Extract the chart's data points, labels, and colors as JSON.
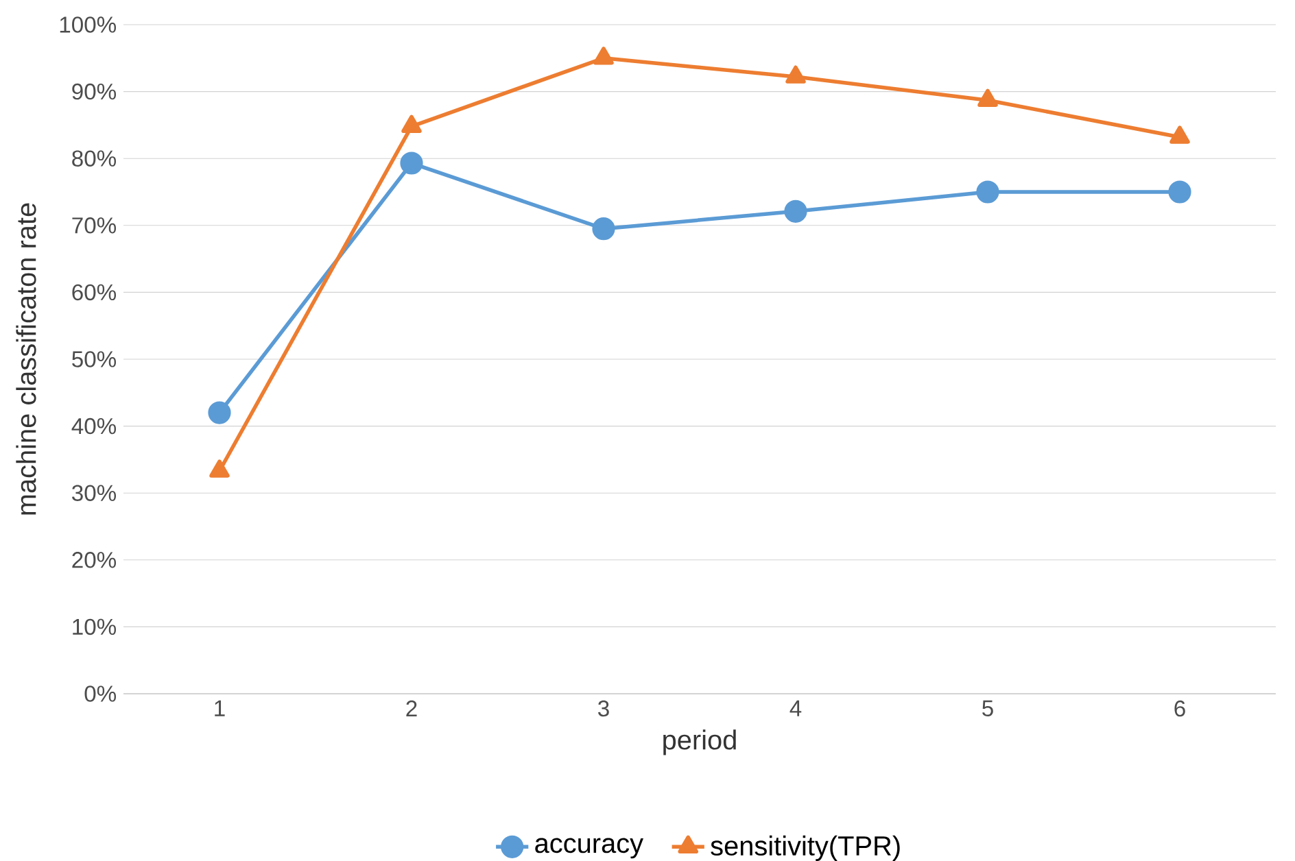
{
  "chart_data": {
    "type": "line",
    "xlabel": "period",
    "ylabel": "machine classificaton rate",
    "categories": [
      "1",
      "2",
      "3",
      "4",
      "5",
      "6"
    ],
    "series": [
      {
        "name": "accuracy",
        "color": "#5b9bd5",
        "marker": "circle",
        "values": [
          42,
          79.3,
          69.5,
          72.1,
          75,
          75
        ]
      },
      {
        "name": "sensitivity(TPR)",
        "color": "#ed7d31",
        "marker": "triangle",
        "values": [
          33.3,
          84.8,
          95,
          92.2,
          88.7,
          83.2
        ]
      }
    ],
    "ylim": [
      0,
      100
    ],
    "yticks": [
      {
        "value": 0,
        "label": "0%"
      },
      {
        "value": 10,
        "label": "10%"
      },
      {
        "value": 20,
        "label": "20%"
      },
      {
        "value": 30,
        "label": "30%"
      },
      {
        "value": 40,
        "label": "40%"
      },
      {
        "value": 50,
        "label": "50%"
      },
      {
        "value": 60,
        "label": "60%"
      },
      {
        "value": 70,
        "label": "70%"
      },
      {
        "value": 80,
        "label": "80%"
      },
      {
        "value": 90,
        "label": "90%"
      },
      {
        "value": 100,
        "label": "100%"
      }
    ],
    "grid": "y",
    "legend": "bottom",
    "line_style": "solid"
  }
}
